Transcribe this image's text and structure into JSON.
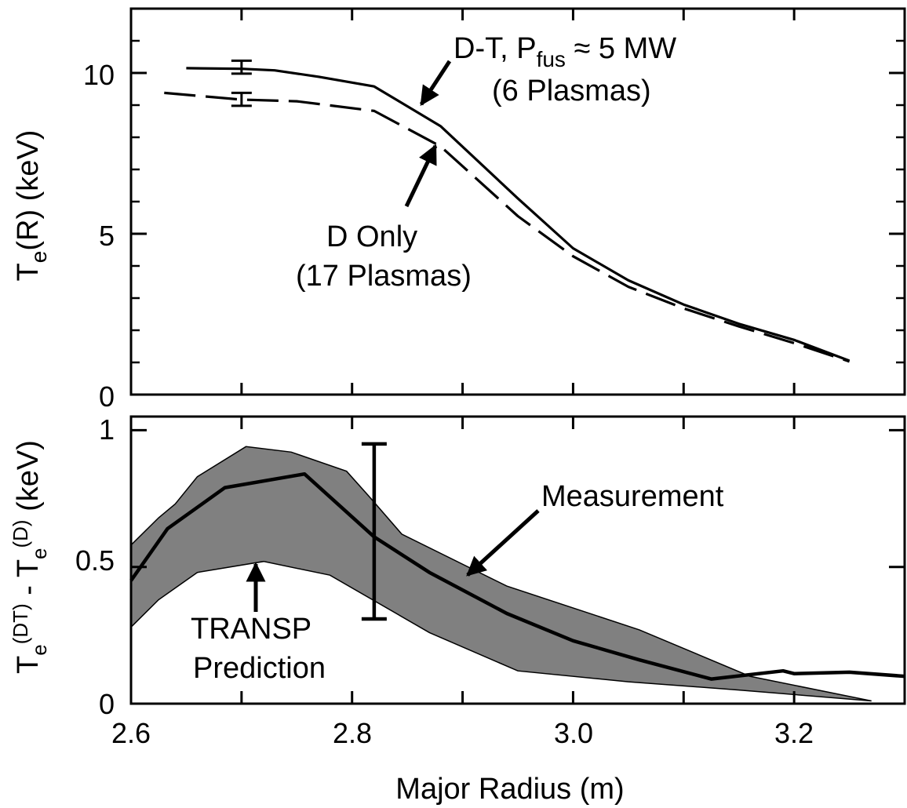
{
  "chart_data": [
    {
      "type": "line",
      "panel": "top",
      "ylabel": {
        "base": "T",
        "sub": "e",
        "rest": "(R) (keV)"
      },
      "xlim": [
        2.6,
        3.3
      ],
      "ylim": [
        0,
        12
      ],
      "yticks_labeled": [
        "0",
        "5",
        "10"
      ],
      "yticks_labeled_values": [
        0,
        5,
        10
      ],
      "yticks_minor_values": [
        1,
        2,
        3,
        4,
        6,
        7,
        8,
        9,
        11
      ],
      "series": [
        {
          "key": "dt",
          "style": "solid",
          "x": [
            2.65,
            2.7,
            2.73,
            2.77,
            2.82,
            2.88,
            2.95,
            3.0,
            3.05,
            3.1,
            3.15,
            3.2,
            3.25
          ],
          "y": [
            10.15,
            10.13,
            10.08,
            9.88,
            9.58,
            8.35,
            6.1,
            4.55,
            3.55,
            2.8,
            2.2,
            1.7,
            1.05
          ]
        },
        {
          "key": "d",
          "style": "dashed",
          "x": [
            2.63,
            2.7,
            2.75,
            2.82,
            2.88,
            2.95,
            3.0,
            3.05,
            3.1,
            3.15,
            3.2,
            3.25
          ],
          "y": [
            9.38,
            9.17,
            9.12,
            8.82,
            7.72,
            5.55,
            4.3,
            3.35,
            2.68,
            2.12,
            1.6,
            1.03
          ]
        }
      ],
      "error_bars": [
        {
          "x": 2.7,
          "y_low": 9.98,
          "y_high": 10.38
        },
        {
          "x": 2.7,
          "y_low": 8.98,
          "y_high": 9.38
        }
      ],
      "annotations": [
        {
          "key": "dt_label",
          "parts": {
            "a": "D-T, P",
            "sub": "fus",
            "b": " ≈ 5 MW"
          },
          "line2": "(6 Plasmas)"
        },
        {
          "key": "d_label",
          "line1": "D Only",
          "line2": "(17 Plasmas)"
        }
      ]
    },
    {
      "type": "area",
      "panel": "bottom",
      "ylabel": {
        "a": "T",
        "sub1": "e",
        "sup1": "(DT)",
        "mid": " - T",
        "sub2": "e",
        "sup2": "(D)",
        "end": " (keV)"
      },
      "xlabel": "Major Radius (m)",
      "xlim": [
        2.6,
        3.3
      ],
      "ylim": [
        0,
        1.05
      ],
      "xticks_labeled": [
        "2.6",
        "2.8",
        "3.0",
        "3.2"
      ],
      "xticks_labeled_values": [
        2.6,
        2.8,
        3.0,
        3.2
      ],
      "xticks_all_values": [
        2.6,
        2.7,
        2.8,
        2.9,
        3.0,
        3.1,
        3.2,
        3.3
      ],
      "yticks_labeled": [
        "0",
        "0.5",
        "1"
      ],
      "yticks_labeled_values": [
        0,
        0.5,
        1.0
      ],
      "band_fill_color": "#808080",
      "band": {
        "upper_x": [
          2.6,
          2.625,
          2.64,
          2.66,
          2.704,
          2.745,
          2.795,
          2.815,
          2.845,
          2.94,
          3.06,
          3.16,
          3.27
        ],
        "upper_y": [
          0.58,
          0.68,
          0.73,
          0.83,
          0.94,
          0.92,
          0.85,
          0.76,
          0.62,
          0.43,
          0.27,
          0.1,
          0.01
        ],
        "lower_x": [
          2.6,
          2.625,
          2.66,
          2.72,
          2.78,
          2.87,
          2.95,
          3.05,
          3.15,
          3.27
        ],
        "lower_y": [
          0.28,
          0.38,
          0.48,
          0.52,
          0.47,
          0.26,
          0.12,
          0.08,
          0.05,
          0.01
        ]
      },
      "series": [
        {
          "key": "measurement",
          "style": "solid",
          "x": [
            2.6,
            2.633,
            2.685,
            2.757,
            2.82,
            2.87,
            2.94,
            3.0,
            3.06,
            3.125,
            3.19,
            3.2,
            3.25,
            3.3
          ],
          "y": [
            0.45,
            0.64,
            0.79,
            0.84,
            0.61,
            0.48,
            0.33,
            0.23,
            0.16,
            0.09,
            0.12,
            0.11,
            0.115,
            0.1
          ]
        }
      ],
      "error_bars": [
        {
          "x": 2.82,
          "y_low": 0.31,
          "y_high": 0.95
        }
      ],
      "annotations": [
        {
          "key": "measurement_label",
          "text": "Measurement"
        },
        {
          "key": "transp_label",
          "line1": "TRANSP",
          "line2": "Prediction"
        }
      ]
    }
  ]
}
